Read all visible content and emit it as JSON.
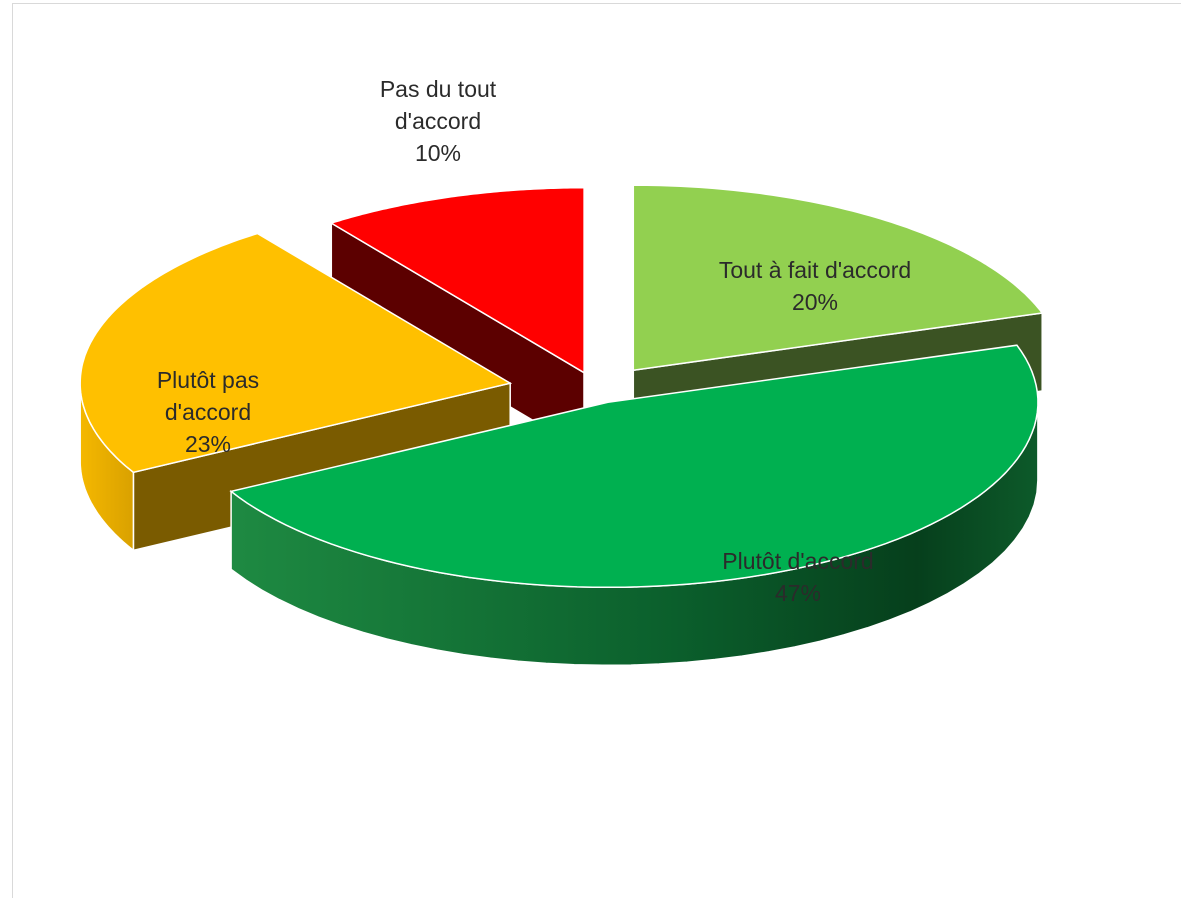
{
  "chart_data": {
    "type": "pie",
    "three_d": true,
    "exploded": true,
    "title": "",
    "slices": [
      {
        "category": "Tout à fait d'accord",
        "label_lines": [
          "Tout à fait d'accord"
        ],
        "value": 20,
        "label": "20%",
        "color": "#92d050",
        "side_color": "#3b5323"
      },
      {
        "category": "Plutôt d'accord",
        "label_lines": [
          "Plutôt d'accord"
        ],
        "value": 47,
        "label": "47%",
        "color": "#00b050",
        "side_color": "#0f6a30"
      },
      {
        "category": "Plutôt pas d'accord",
        "label_lines": [
          "Plutôt pas",
          "d'accord"
        ],
        "value": 23,
        "label": "23%",
        "color": "#ffc000",
        "side_color": "#7a5b00"
      },
      {
        "category": "Pas du tout d'accord",
        "label_lines": [
          "Pas du tout",
          "d'accord"
        ],
        "value": 10,
        "label": "10%",
        "color": "#ff0000",
        "side_color": "#5c0000"
      }
    ]
  }
}
